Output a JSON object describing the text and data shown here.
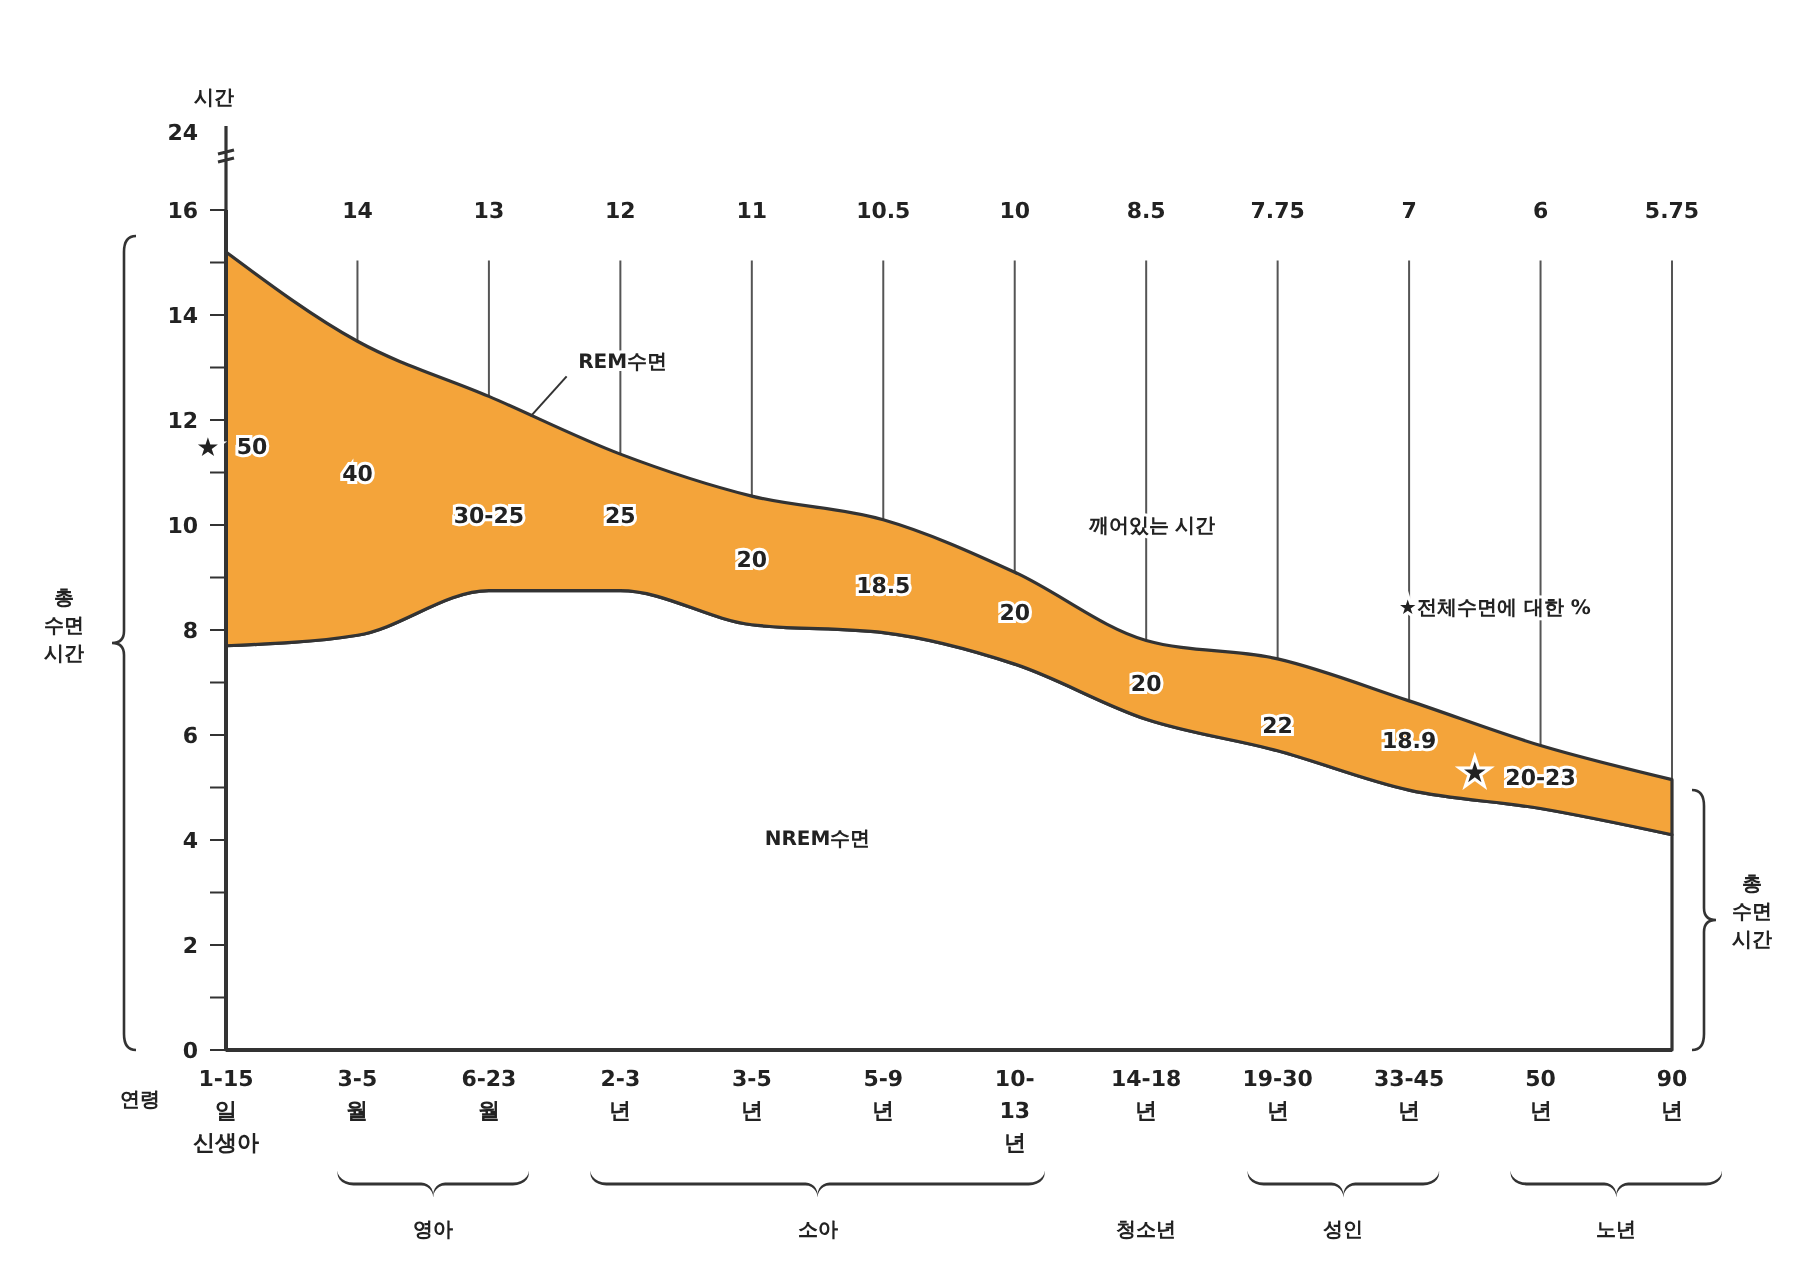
{
  "chart_data": {
    "type": "area",
    "stacked": true,
    "categories": [
      "1-15\n일\n신생아",
      "3-5\n월",
      "6-23\n월",
      "2-3\n년",
      "3-5\n년",
      "5-9\n년",
      "10-\n13\n년",
      "14-18\n년",
      "19-30\n년",
      "33-45\n년",
      "50\n년",
      "90\n년"
    ],
    "series": [
      {
        "name": "NREM수면",
        "color": "#ffffff",
        "values": [
          7.7,
          7.9,
          8.75,
          8.75,
          8.1,
          7.95,
          7.35,
          6.3,
          5.7,
          4.95,
          4.6,
          4.1
        ]
      },
      {
        "name": "REM수면",
        "color": "#f4a43a",
        "values": [
          7.5,
          5.6,
          3.7,
          2.6,
          2.45,
          2.15,
          1.75,
          1.5,
          1.75,
          1.7,
          1.2,
          1.05
        ]
      }
    ],
    "ylabel": "총\n수면\n시간",
    "ylim": [
      0,
      16
    ],
    "yticks": [
      0,
      {
        "value": 1,
        "label": null
      },
      2,
      {
        "value": 3,
        "label": null
      },
      4,
      {
        "value": 5,
        "label": null
      },
      6,
      {
        "value": 7,
        "label": null
      },
      8,
      {
        "value": 9,
        "label": null
      },
      10,
      {
        "value": 11,
        "label": null
      },
      12,
      {
        "value": 13,
        "label": null
      },
      14,
      {
        "value": 15,
        "label": null
      },
      16
    ],
    "grid": "x",
    "annotations": [
      "14",
      "13",
      "12",
      "11",
      "10.5",
      "10",
      "8.5",
      "7.75",
      "7",
      "6",
      "5.75",
      "★",
      "50",
      "40",
      "30-25",
      "25",
      "20",
      "18.5",
      "20",
      "20",
      "22",
      "18.9",
      "20-23",
      "시간",
      "24",
      "연령",
      "깨어있는 시간",
      "★전체수면에 대한 %",
      "★",
      "총\n수면\n시간",
      "영아",
      "소아",
      "청소년",
      "성인",
      "노년"
    ]
  }
}
